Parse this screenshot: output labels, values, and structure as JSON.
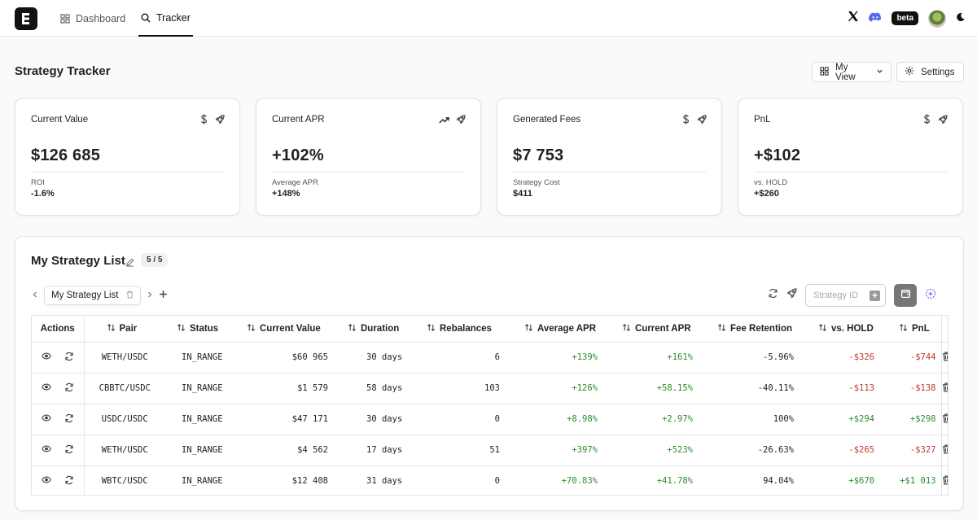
{
  "nav": {
    "items": [
      {
        "label": "Dashboard",
        "icon": "grid-icon"
      },
      {
        "label": "Tracker",
        "icon": "search-icon",
        "active": true
      }
    ],
    "beta_label": "beta"
  },
  "header": {
    "title": "Strategy Tracker",
    "view_button": "My View",
    "settings_button": "Settings"
  },
  "cards": [
    {
      "title": "Current Value",
      "value": "$126 685",
      "sub_label": "ROI",
      "sub_value": "-1.6%",
      "icons": [
        "dollar-icon",
        "rocket-icon"
      ]
    },
    {
      "title": "Current APR",
      "value": "+102%",
      "sub_label": "Average APR",
      "sub_value": "+148%",
      "icons": [
        "trending-up-icon",
        "rocket-icon"
      ]
    },
    {
      "title": "Generated Fees",
      "value": "$7 753",
      "sub_label": "Strategy Cost",
      "sub_value": "$411",
      "icons": [
        "dollar-icon",
        "rocket-icon"
      ]
    },
    {
      "title": "PnL",
      "value": "+$102",
      "sub_label": "vs. HOLD",
      "sub_value": "+$260",
      "icons": [
        "dollar-icon",
        "rocket-icon"
      ]
    }
  ],
  "list": {
    "title": "My Strategy List",
    "count": "5 / 5",
    "tab_label": "My Strategy List",
    "strategy_id_placeholder": "Strategy ID",
    "columns": [
      "Actions",
      "Pair",
      "Status",
      "Current Value",
      "Duration",
      "Rebalances",
      "Average APR",
      "Current APR",
      "Fee Retention",
      "vs. HOLD",
      "PnL"
    ],
    "rows": [
      {
        "pair": "WETH/USDC",
        "status": "IN_RANGE",
        "current_value": "$60 965",
        "duration": "30 days",
        "rebalances": "6",
        "average_apr": "+139%",
        "current_apr": "+161%",
        "fee_retention": "-5.96%",
        "vs_hold": "-$326",
        "pnl": "-$744"
      },
      {
        "pair": "CBBTC/USDC",
        "status": "IN_RANGE",
        "current_value": "$1 579",
        "duration": "58 days",
        "rebalances": "103",
        "average_apr": "+126%",
        "current_apr": "+58.15%",
        "fee_retention": "-40.11%",
        "vs_hold": "-$113",
        "pnl": "-$138"
      },
      {
        "pair": "USDC/USDC",
        "status": "IN_RANGE",
        "current_value": "$47 171",
        "duration": "30 days",
        "rebalances": "0",
        "average_apr": "+8.98%",
        "current_apr": "+2.97%",
        "fee_retention": "100%",
        "vs_hold": "+$294",
        "pnl": "+$298"
      },
      {
        "pair": "WETH/USDC",
        "status": "IN_RANGE",
        "current_value": "$4 562",
        "duration": "17 days",
        "rebalances": "51",
        "average_apr": "+397%",
        "current_apr": "+523%",
        "fee_retention": "-26.63%",
        "vs_hold": "-$265",
        "pnl": "-$327"
      },
      {
        "pair": "WBTC/USDC",
        "status": "IN_RANGE",
        "current_value": "$12 408",
        "duration": "31 days",
        "rebalances": "0",
        "average_apr": "+70.83%",
        "current_apr": "+41.78%",
        "fee_retention": "94.04%",
        "vs_hold": "+$670",
        "pnl": "+$1 013"
      }
    ]
  },
  "colors": {
    "positive": "#2e8b2e",
    "negative": "#c0392b",
    "accent": "#111111"
  }
}
